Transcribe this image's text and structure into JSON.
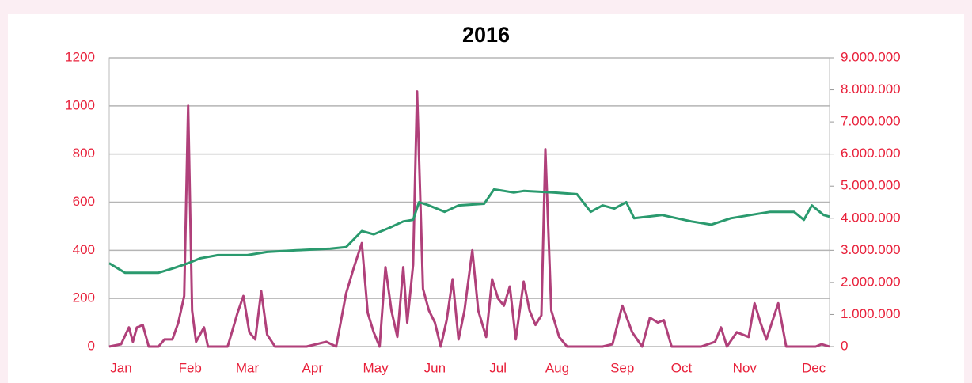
{
  "chart_data": {
    "type": "line",
    "title": "2016",
    "xlim": [
      0,
      365
    ],
    "xticks": [
      {
        "value": 6,
        "label": "Jan"
      },
      {
        "value": 41,
        "label": "Feb"
      },
      {
        "value": 70,
        "label": "Mar"
      },
      {
        "value": 103,
        "label": "Apr"
      },
      {
        "value": 135,
        "label": "May"
      },
      {
        "value": 165,
        "label": "Jun"
      },
      {
        "value": 197,
        "label": "Jul"
      },
      {
        "value": 227,
        "label": "Aug"
      },
      {
        "value": 260,
        "label": "Sep"
      },
      {
        "value": 290,
        "label": "Oct"
      },
      {
        "value": 322,
        "label": "Nov"
      },
      {
        "value": 357,
        "label": "Dec"
      }
    ],
    "ylim": [
      0,
      1200
    ],
    "yticks": [
      0,
      200,
      400,
      600,
      800,
      1000,
      1200
    ],
    "y2lim": [
      0,
      9000000
    ],
    "y2ticks": [
      0,
      {
        "value": 1000000,
        "label": "1.000.000"
      },
      {
        "value": 2000000,
        "label": "2.000.000"
      },
      {
        "value": 3000000,
        "label": "3.000.000"
      },
      {
        "value": 4000000,
        "label": "4.000.000"
      },
      {
        "value": 5000000,
        "label": "5.000.000"
      },
      {
        "value": 6000000,
        "label": "6.000.000"
      },
      {
        "value": 7000000,
        "label": "7.000.000"
      },
      {
        "value": 8000000,
        "label": "8.000.000"
      },
      {
        "value": 9000000,
        "label": "9.000.000"
      }
    ],
    "grid": true,
    "tick_color": "#e8203a",
    "series": [
      {
        "color": "#b0407a",
        "x": [
          0,
          6,
          10,
          12,
          14,
          17,
          20,
          25,
          28,
          32,
          35,
          38,
          40,
          42,
          44,
          48,
          50,
          60,
          65,
          68,
          71,
          74,
          77,
          80,
          84,
          100,
          110,
          115,
          120,
          124,
          128,
          131,
          134,
          137,
          140,
          143,
          146,
          149,
          151,
          154,
          156,
          159,
          162,
          165,
          168,
          171,
          174,
          177,
          180,
          184,
          187,
          191,
          194,
          197,
          200,
          203,
          206,
          210,
          213,
          216,
          219,
          221,
          224,
          228,
          232,
          250,
          255,
          260,
          265,
          270,
          274,
          278,
          281,
          285,
          300,
          307,
          310,
          313,
          318,
          324,
          327,
          330,
          333,
          339,
          343,
          358,
          361,
          365
        ],
        "values": [
          0,
          10,
          80,
          20,
          80,
          90,
          0,
          0,
          30,
          30,
          100,
          210,
          1000,
          150,
          20,
          80,
          0,
          0,
          140,
          210,
          60,
          30,
          230,
          50,
          0,
          0,
          20,
          0,
          220,
          330,
          430,
          140,
          60,
          0,
          330,
          150,
          40,
          330,
          100,
          340,
          1060,
          240,
          150,
          100,
          0,
          110,
          280,
          30,
          150,
          400,
          150,
          40,
          280,
          200,
          170,
          250,
          30,
          270,
          150,
          90,
          130,
          820,
          150,
          40,
          0,
          0,
          10,
          170,
          60,
          0,
          120,
          100,
          110,
          0,
          0,
          20,
          80,
          0,
          60,
          40,
          180,
          100,
          30,
          180,
          0,
          0,
          10,
          0
        ]
      },
      {
        "color": "#2a9a6e",
        "axis": "y2",
        "x": [
          0,
          8,
          25,
          33,
          40,
          46,
          55,
          70,
          80,
          95,
          112,
          120,
          128,
          134,
          142,
          149,
          154,
          157,
          162,
          170,
          177,
          190,
          195,
          205,
          210,
          225,
          237,
          244,
          250,
          256,
          262,
          266,
          280,
          295,
          305,
          315,
          325,
          335,
          347,
          352,
          356,
          362,
          365
        ],
        "values": [
          2600000,
          2300000,
          2300000,
          2450000,
          2600000,
          2750000,
          2850000,
          2850000,
          2950000,
          3000000,
          3050000,
          3100000,
          3600000,
          3500000,
          3700000,
          3900000,
          3950000,
          4500000,
          4400000,
          4200000,
          4400000,
          4450000,
          4900000,
          4800000,
          4850000,
          4800000,
          4750000,
          4200000,
          4400000,
          4300000,
          4500000,
          4000000,
          4100000,
          3900000,
          3800000,
          4000000,
          4100000,
          4200000,
          4200000,
          3950000,
          4400000,
          4100000,
          4050000
        ]
      }
    ]
  }
}
